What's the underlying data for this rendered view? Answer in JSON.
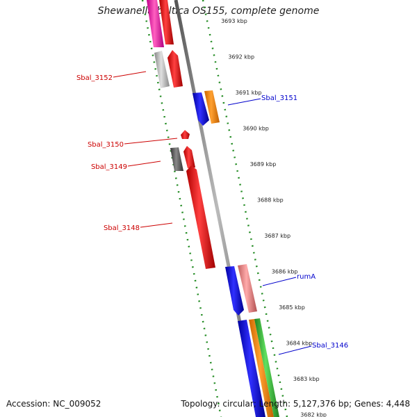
{
  "title": "Shewanella baltica OS155, complete genome",
  "footer": {
    "accession": "Accession: NC_009052",
    "summary": "Topology: circular; Length: 5,127,376 bp; Genes: 4,448"
  },
  "colors": {
    "left_label": "#cc0000",
    "right_label": "#0000cc",
    "backbone": "#888888",
    "tick_marks": "#228b22"
  },
  "scale_ticks": [
    "3693 kbp",
    "3692 kbp",
    "3691 kbp",
    "3690 kbp",
    "3689 kbp",
    "3688 kbp",
    "3687 kbp",
    "3686 kbp",
    "3685 kbp",
    "3684 kbp",
    "3683 kbp",
    "3682 kbp"
  ],
  "left_labels": [
    "Sbal_3152",
    "Sbal_3150",
    "Sbal_3149",
    "Sbal_3148"
  ],
  "right_labels": [
    "Sbal_3151",
    "rumA",
    "Sbal_3146"
  ],
  "features": [
    {
      "name": "Sbal_3152",
      "color": "#c0c0c0"
    },
    {
      "name": "Sbal_3150",
      "color": "#ff0000"
    },
    {
      "name": "Sbal_3149",
      "color": "#666666"
    },
    {
      "name": "Sbal_3148",
      "color": "#ff0000"
    },
    {
      "name": "Sbal_3151",
      "color": "#0000ff"
    },
    {
      "name": "rumA",
      "color": "#f08080"
    },
    {
      "name": "Sbal_3146",
      "color": "#0000ff"
    }
  ]
}
